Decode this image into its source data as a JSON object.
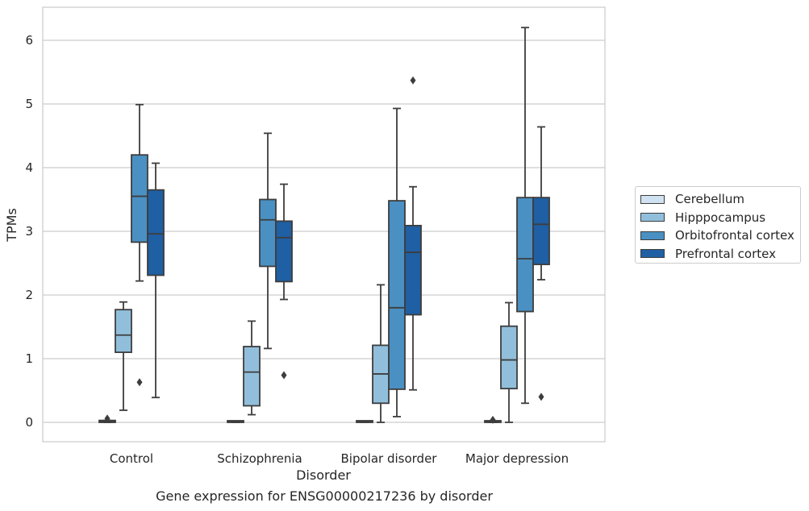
{
  "caption": "Gene expression for ENSG00000217236 by disorder",
  "chart_data": {
    "type": "boxplot",
    "title": "",
    "xlabel": "Disorder",
    "ylabel": "TPMs",
    "ylim": [
      -0.3,
      6.5
    ],
    "yticks": [
      0,
      1,
      2,
      3,
      4,
      5,
      6
    ],
    "grid": "horizontal",
    "legend_position": "right",
    "categories": [
      "Control",
      "Schizophrenia",
      "Bipolar disorder",
      "Major depression"
    ],
    "series": [
      {
        "name": "Cerebellum",
        "color": "#d0e2f1",
        "boxes": [
          {
            "q1": 0.0,
            "median": 0.01,
            "q3": 0.03,
            "whisker_low": 0.0,
            "whisker_high": 0.03,
            "outliers": [
              0.06
            ]
          },
          {
            "q1": 0.0,
            "median": 0.01,
            "q3": 0.02,
            "whisker_low": 0.0,
            "whisker_high": 0.02,
            "outliers": []
          },
          {
            "q1": 0.0,
            "median": 0.01,
            "q3": 0.02,
            "whisker_low": 0.0,
            "whisker_high": 0.02,
            "outliers": []
          },
          {
            "q1": 0.0,
            "median": 0.01,
            "q3": 0.02,
            "whisker_low": 0.0,
            "whisker_high": 0.02,
            "outliers": [
              0.04
            ]
          }
        ]
      },
      {
        "name": "Hipppocampus",
        "color": "#91bfdb",
        "boxes": [
          {
            "q1": 1.1,
            "median": 1.37,
            "q3": 1.77,
            "whisker_low": 0.19,
            "whisker_high": 1.89,
            "outliers": []
          },
          {
            "q1": 0.26,
            "median": 0.79,
            "q3": 1.19,
            "whisker_low": 0.12,
            "whisker_high": 1.59,
            "outliers": []
          },
          {
            "q1": 0.3,
            "median": 0.76,
            "q3": 1.21,
            "whisker_low": 0.0,
            "whisker_high": 2.16,
            "outliers": []
          },
          {
            "q1": 0.53,
            "median": 0.98,
            "q3": 1.51,
            "whisker_low": 0.0,
            "whisker_high": 1.88,
            "outliers": []
          }
        ]
      },
      {
        "name": "Orbitofrontal cortex",
        "color": "#4a90c2",
        "boxes": [
          {
            "q1": 2.83,
            "median": 3.55,
            "q3": 4.2,
            "whisker_low": 2.22,
            "whisker_high": 4.99,
            "outliers": [
              0.63
            ]
          },
          {
            "q1": 2.45,
            "median": 3.18,
            "q3": 3.5,
            "whisker_low": 1.16,
            "whisker_high": 4.54,
            "outliers": []
          },
          {
            "q1": 0.52,
            "median": 1.8,
            "q3": 3.48,
            "whisker_low": 0.09,
            "whisker_high": 4.93,
            "outliers": []
          },
          {
            "q1": 1.74,
            "median": 2.57,
            "q3": 3.53,
            "whisker_low": 0.3,
            "whisker_high": 6.2,
            "outliers": []
          }
        ]
      },
      {
        "name": "Prefrontal cortex",
        "color": "#1f5fa3",
        "boxes": [
          {
            "q1": 2.31,
            "median": 2.96,
            "q3": 3.65,
            "whisker_low": 0.39,
            "whisker_high": 4.07,
            "outliers": []
          },
          {
            "q1": 2.21,
            "median": 2.9,
            "q3": 3.16,
            "whisker_low": 1.93,
            "whisker_high": 3.74,
            "outliers": [
              0.74
            ]
          },
          {
            "q1": 1.69,
            "median": 2.67,
            "q3": 3.09,
            "whisker_low": 0.51,
            "whisker_high": 3.7,
            "outliers": [
              5.37
            ]
          },
          {
            "q1": 2.48,
            "median": 3.11,
            "q3": 3.53,
            "whisker_low": 2.24,
            "whisker_high": 4.64,
            "outliers": [
              0.4
            ]
          }
        ]
      }
    ]
  }
}
